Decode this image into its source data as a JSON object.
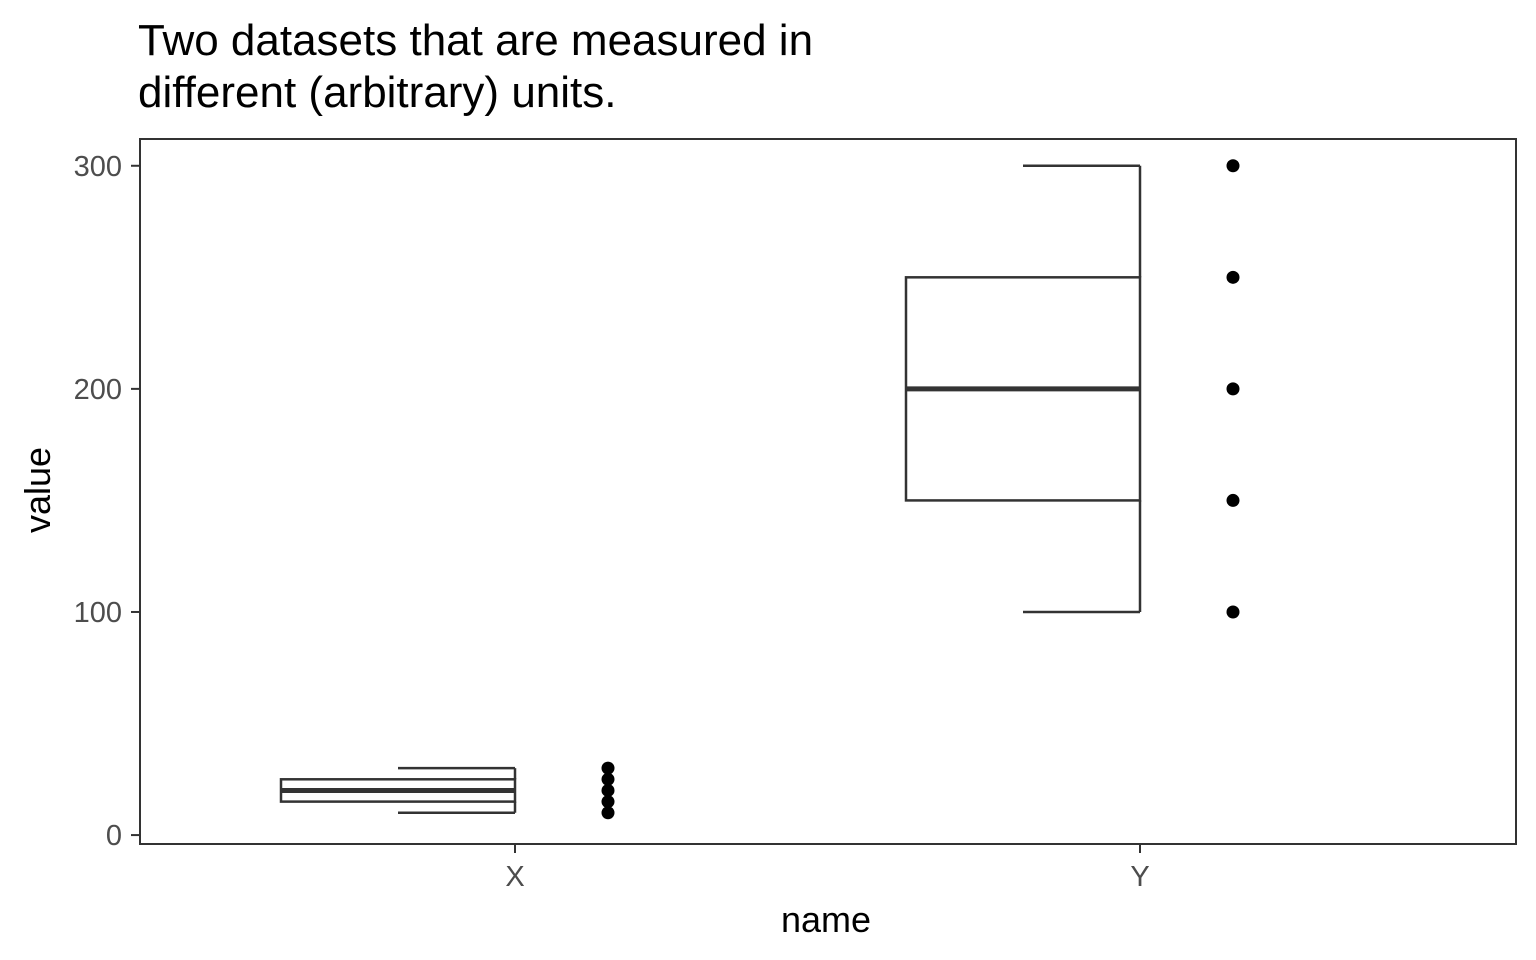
{
  "chart_data": {
    "type": "boxplot",
    "title": "Two datasets that are measured in different (arbitrary) units.",
    "title_lines": [
      "Two datasets that are measured in",
      "different (arbitrary) units."
    ],
    "xlabel": "name",
    "ylabel": "value",
    "categories": [
      "X",
      "Y"
    ],
    "ylim": [
      -4,
      312
    ],
    "yticks": [
      0,
      100,
      200,
      300
    ],
    "grid": false,
    "series": [
      {
        "category": "X",
        "min": 10,
        "q1": 15,
        "median": 20,
        "q3": 25,
        "max": 30,
        "points": [
          10,
          15,
          20,
          25,
          30
        ]
      },
      {
        "category": "Y",
        "min": 100,
        "q1": 150,
        "median": 200,
        "q3": 250,
        "max": 300,
        "points": [
          100,
          150,
          200,
          250,
          300
        ]
      }
    ],
    "colors": {
      "box": "#333333",
      "points": "#000000",
      "ticks": "#4d4d4d"
    }
  }
}
